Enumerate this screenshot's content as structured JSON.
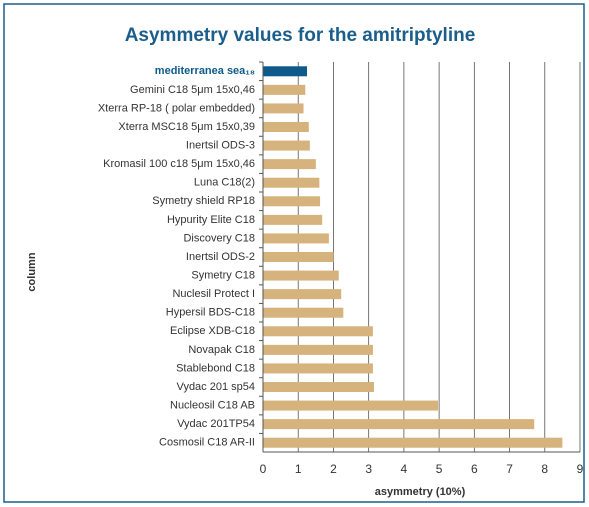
{
  "chart_data": {
    "type": "barh",
    "title": "Asymmetry values for the amitriptyline",
    "x_label": "asymmetry (10%)",
    "y_label": "column",
    "categories": [
      "mediterranea sea₁₈",
      "Gemini C18 5μm 15x0,46",
      "Xterra RP-18 ( polar embedded)",
      "Xterra MSC18 5μm 15x0,39",
      "Inertsil ODS-3",
      "Kromasil 100 c18 5μm 15x0,46",
      "Luna C18(2)",
      "Symetry shield RP18",
      "Hypurity Elite C18",
      "Discovery C18",
      "Inertsil ODS-2",
      "Symetry C18",
      "Nuclesil Protect I",
      "Hypersil BDS-C18",
      "Eclipse XDB-C18",
      "Novapak C18",
      "Stablebond C18",
      "Vydac 201 sp54",
      "Nucleosil C18 AB",
      "Vydac 201TP54",
      "Cosmosil C18 AR-II"
    ],
    "values": [
      1.25,
      1.2,
      1.15,
      1.3,
      1.33,
      1.5,
      1.6,
      1.62,
      1.68,
      1.87,
      2.0,
      2.15,
      2.22,
      2.28,
      3.12,
      3.12,
      3.12,
      3.15,
      4.97,
      7.7,
      8.5
    ],
    "colors": [
      "#0e5a8a",
      "#d6b27c",
      "#d6b27c",
      "#d6b27c",
      "#d6b27c",
      "#d6b27c",
      "#d6b27c",
      "#d6b27c",
      "#d6b27c",
      "#d6b27c",
      "#d6b27c",
      "#d6b27c",
      "#d6b27c",
      "#d6b27c",
      "#d6b27c",
      "#d6b27c",
      "#d6b27c",
      "#d6b27c",
      "#d6b27c",
      "#d6b27c",
      "#d6b27c"
    ],
    "xlim": [
      0,
      9
    ],
    "xticks": [
      0,
      1,
      2,
      3,
      4,
      5,
      6,
      7,
      8,
      9
    ],
    "grid": true
  }
}
